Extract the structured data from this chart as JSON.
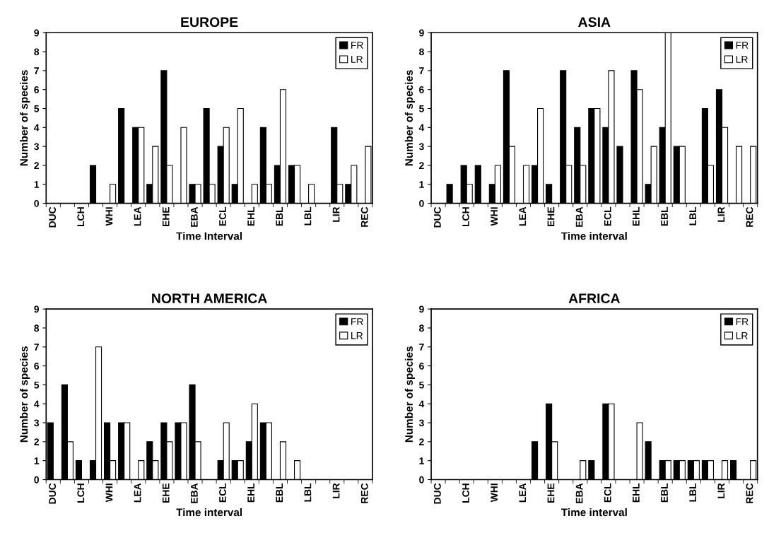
{
  "chart_data": [
    {
      "type": "bar",
      "title": "EUROPE",
      "xlabel": "Time Interval",
      "ylabel": "Number of species",
      "categories": [
        "DUC",
        null,
        "LCH",
        null,
        "WHI",
        null,
        "LEA",
        null,
        "EHE",
        null,
        "EBA",
        null,
        "ECL",
        null,
        "EHL",
        null,
        "EBL",
        null,
        "LBL",
        null,
        "LIR",
        null,
        "REC"
      ],
      "series": [
        {
          "name": "FR",
          "color": "#000000",
          "values": [
            0,
            0,
            0,
            2,
            0,
            5,
            4,
            1,
            7,
            0,
            1,
            5,
            3,
            1,
            0,
            4,
            2,
            2,
            0,
            0,
            4,
            1,
            0
          ]
        },
        {
          "name": "LR",
          "color": "#ffffff",
          "values": [
            0,
            0,
            0,
            0,
            1,
            0,
            4,
            3,
            2,
            4,
            1,
            1,
            4,
            5,
            1,
            1,
            6,
            2,
            1,
            0,
            1,
            2,
            3
          ]
        }
      ],
      "ylim": [
        0,
        9
      ],
      "yticks": [
        0,
        1,
        2,
        3,
        4,
        5,
        6,
        7,
        8,
        9
      ],
      "legend": "top right",
      "grid": false
    },
    {
      "type": "bar",
      "title": "ASIA",
      "xlabel": "Time interval",
      "ylabel": "Number of species",
      "categories": [
        "DUC",
        null,
        "LCH",
        null,
        "WHI",
        null,
        "LEA",
        null,
        "EHE",
        null,
        "EBA",
        null,
        "ECL",
        null,
        "EHL",
        null,
        "EBL",
        null,
        "LBL",
        null,
        "LIR",
        null,
        "REC"
      ],
      "series": [
        {
          "name": "FR",
          "color": "#000000",
          "values": [
            0,
            1,
            2,
            2,
            1,
            7,
            0,
            2,
            1,
            7,
            4,
            5,
            4,
            3,
            7,
            1,
            4,
            3,
            0,
            5,
            6,
            0,
            0
          ]
        },
        {
          "name": "LR",
          "color": "#ffffff",
          "values": [
            0,
            0,
            1,
            0,
            2,
            3,
            2,
            5,
            0,
            2,
            2,
            5,
            7,
            0,
            6,
            3,
            9,
            3,
            0,
            2,
            4,
            3,
            3
          ]
        }
      ],
      "ylim": [
        0,
        9
      ],
      "yticks": [
        0,
        1,
        2,
        3,
        4,
        5,
        6,
        7,
        8,
        9
      ],
      "legend": "top right",
      "grid": false
    },
    {
      "type": "bar",
      "title": "NORTH AMERICA",
      "xlabel": "Time interval",
      "ylabel": "Number of species",
      "categories": [
        "DUC",
        null,
        "LCH",
        null,
        "WHI",
        null,
        "LEA",
        null,
        "EHE",
        null,
        "EBA",
        null,
        "ECL",
        null,
        "EHL",
        null,
        "EBL",
        null,
        "LBL",
        null,
        "LIR",
        null,
        "REC"
      ],
      "series": [
        {
          "name": "FR",
          "color": "#000000",
          "values": [
            3,
            5,
            1,
            1,
            3,
            3,
            0,
            2,
            3,
            3,
            5,
            0,
            1,
            1,
            2,
            3,
            0,
            0,
            0,
            0,
            0,
            0,
            0
          ]
        },
        {
          "name": "LR",
          "color": "#ffffff",
          "values": [
            0,
            2,
            0,
            7,
            1,
            3,
            1,
            1,
            2,
            3,
            2,
            0,
            3,
            1,
            4,
            3,
            2,
            1,
            0,
            0,
            0,
            0,
            0
          ]
        }
      ],
      "ylim": [
        0,
        9
      ],
      "yticks": [
        0,
        1,
        2,
        3,
        4,
        5,
        6,
        7,
        8,
        9
      ],
      "legend": "top right",
      "grid": false
    },
    {
      "type": "bar",
      "title": "AFRICA",
      "xlabel": "Time interval",
      "ylabel": "Number of species",
      "categories": [
        "DUC",
        null,
        "LCH",
        null,
        "WHI",
        null,
        "LEA",
        null,
        "EHE",
        null,
        "EBA",
        null,
        "ECL",
        null,
        "EHL",
        null,
        "EBL",
        null,
        "LBL",
        null,
        "LIR",
        null,
        "REC"
      ],
      "series": [
        {
          "name": "FR",
          "color": "#000000",
          "values": [
            0,
            0,
            0,
            0,
            0,
            0,
            0,
            2,
            4,
            0,
            0,
            1,
            4,
            0,
            0,
            2,
            1,
            1,
            1,
            1,
            0,
            1,
            0
          ]
        },
        {
          "name": "LR",
          "color": "#ffffff",
          "values": [
            0,
            0,
            0,
            0,
            0,
            0,
            0,
            0,
            2,
            0,
            1,
            0,
            4,
            0,
            3,
            0,
            1,
            1,
            1,
            1,
            1,
            0,
            1
          ]
        }
      ],
      "ylim": [
        0,
        9
      ],
      "yticks": [
        0,
        1,
        2,
        3,
        4,
        5,
        6,
        7,
        8,
        9
      ],
      "legend": "top right",
      "grid": false
    }
  ]
}
